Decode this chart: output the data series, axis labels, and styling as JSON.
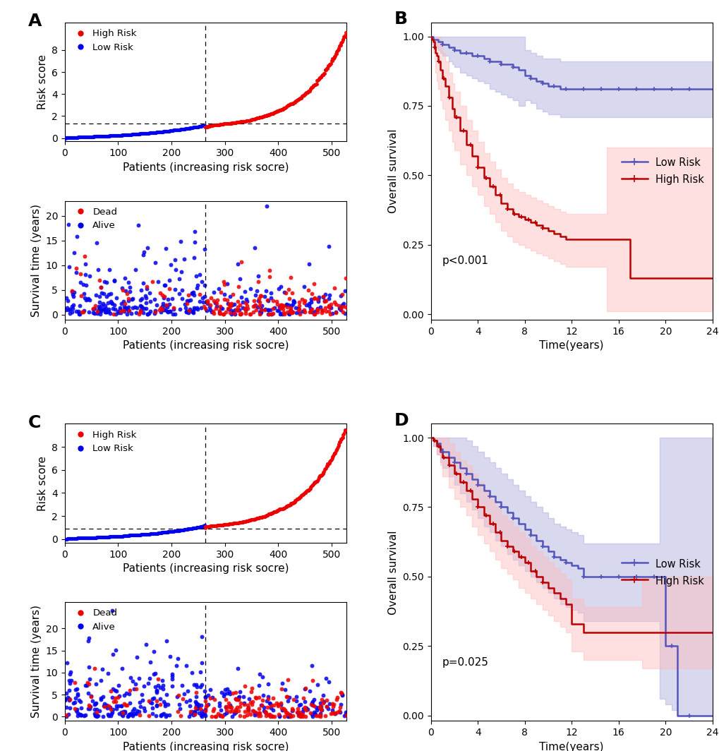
{
  "panel_label_fontsize": 18,
  "panel_label_fontweight": "bold",
  "risk_score_A": {
    "n_total": 528,
    "n_low": 263,
    "cutoff_x": 263,
    "y_hline": 1.3,
    "low_color": "#0000EE",
    "high_color": "#EE0000",
    "xlabel": "Patients (increasing risk socre)",
    "ylabel": "Risk score",
    "xlim": [
      0,
      528
    ],
    "ylim": [
      -0.3,
      10.5
    ],
    "yticks": [
      0,
      2,
      4,
      6,
      8
    ],
    "xticks": [
      0,
      100,
      200,
      300,
      400,
      500
    ]
  },
  "survival_dot_A": {
    "n_total": 528,
    "n_low": 263,
    "cutoff_x": 263,
    "dead_color": "#EE0000",
    "alive_color": "#0000EE",
    "xlabel": "Patients (increasing risk socre)",
    "ylabel": "Survival time (years)",
    "xlim": [
      0,
      528
    ],
    "ylim": [
      -1,
      23
    ],
    "yticks": [
      0,
      5,
      10,
      15,
      20
    ],
    "xticks": [
      0,
      100,
      200,
      300,
      400,
      500
    ]
  },
  "km_B": {
    "low_risk_color": "#5555BB",
    "high_risk_color": "#BB0000",
    "low_risk_fill": "#AAAADD",
    "high_risk_fill": "#FFBBBB",
    "xlabel": "Time(years)",
    "ylabel": "Overall survival",
    "xlim": [
      0,
      24
    ],
    "ylim": [
      -0.02,
      1.05
    ],
    "xticks": [
      0,
      4,
      8,
      12,
      16,
      20,
      24
    ],
    "yticks": [
      0.0,
      0.25,
      0.5,
      0.75,
      1.0
    ],
    "pvalue": "p<0.001",
    "low_km_x": [
      0,
      0.2,
      0.4,
      0.6,
      0.8,
      1.0,
      1.2,
      1.5,
      1.8,
      2.0,
      2.5,
      3.0,
      3.5,
      4.0,
      4.5,
      5.0,
      5.5,
      6.0,
      6.5,
      7.0,
      7.5,
      8.0,
      8.5,
      9.0,
      9.5,
      10.0,
      11.0,
      12.0,
      13.0,
      14.0,
      15.0,
      16.0,
      17.0,
      18.0,
      19.0,
      20.0,
      21.0,
      22.0,
      24.0
    ],
    "low_km_y": [
      1.0,
      0.99,
      0.99,
      0.98,
      0.98,
      0.97,
      0.97,
      0.96,
      0.96,
      0.95,
      0.94,
      0.94,
      0.93,
      0.93,
      0.92,
      0.91,
      0.91,
      0.9,
      0.9,
      0.89,
      0.88,
      0.86,
      0.85,
      0.84,
      0.83,
      0.82,
      0.81,
      0.81,
      0.81,
      0.81,
      0.81,
      0.81,
      0.81,
      0.81,
      0.81,
      0.81,
      0.81,
      0.81,
      0.81
    ],
    "low_ci_upper": [
      1.0,
      1.0,
      1.0,
      1.0,
      1.0,
      1.0,
      1.0,
      1.0,
      1.0,
      1.0,
      1.0,
      1.0,
      1.0,
      1.0,
      1.0,
      1.0,
      1.0,
      1.0,
      1.0,
      1.0,
      1.0,
      0.95,
      0.94,
      0.93,
      0.92,
      0.92,
      0.91,
      0.91,
      0.91,
      0.91,
      0.91,
      0.91,
      0.91,
      0.91,
      0.91,
      0.91,
      0.91,
      0.91,
      0.91
    ],
    "low_ci_lower": [
      1.0,
      0.97,
      0.96,
      0.95,
      0.94,
      0.93,
      0.93,
      0.91,
      0.9,
      0.89,
      0.87,
      0.86,
      0.85,
      0.84,
      0.83,
      0.81,
      0.8,
      0.79,
      0.78,
      0.77,
      0.75,
      0.77,
      0.76,
      0.74,
      0.73,
      0.72,
      0.71,
      0.71,
      0.71,
      0.71,
      0.71,
      0.71,
      0.71,
      0.71,
      0.71,
      0.71,
      0.71,
      0.71,
      0.71
    ],
    "high_km_x": [
      0,
      0.1,
      0.2,
      0.3,
      0.4,
      0.5,
      0.6,
      0.8,
      1.0,
      1.2,
      1.5,
      1.8,
      2.0,
      2.5,
      3.0,
      3.5,
      4.0,
      4.5,
      5.0,
      5.5,
      6.0,
      6.5,
      7.0,
      7.5,
      8.0,
      8.5,
      9.0,
      9.5,
      10.0,
      10.5,
      11.0,
      11.5,
      12.0,
      13.0,
      14.0,
      15.0,
      16.0,
      17.0,
      18.0,
      19.0,
      19.5,
      20.0,
      24.0
    ],
    "high_km_y": [
      1.0,
      0.99,
      0.98,
      0.96,
      0.94,
      0.93,
      0.91,
      0.88,
      0.85,
      0.82,
      0.78,
      0.74,
      0.71,
      0.66,
      0.61,
      0.57,
      0.53,
      0.49,
      0.46,
      0.43,
      0.4,
      0.38,
      0.36,
      0.35,
      0.34,
      0.33,
      0.32,
      0.31,
      0.3,
      0.29,
      0.28,
      0.27,
      0.27,
      0.27,
      0.27,
      0.27,
      0.27,
      0.13,
      0.13,
      0.13,
      0.13,
      0.13,
      0.13
    ],
    "high_ci_upper": [
      1.0,
      1.0,
      1.0,
      1.0,
      1.0,
      1.0,
      1.0,
      0.97,
      0.94,
      0.91,
      0.87,
      0.83,
      0.8,
      0.75,
      0.7,
      0.66,
      0.62,
      0.58,
      0.55,
      0.52,
      0.49,
      0.47,
      0.45,
      0.44,
      0.43,
      0.42,
      0.41,
      0.4,
      0.39,
      0.38,
      0.37,
      0.36,
      0.36,
      0.36,
      0.36,
      0.6,
      0.6,
      0.6,
      0.6,
      0.6,
      0.6,
      0.6,
      0.6
    ],
    "high_ci_lower": [
      1.0,
      0.97,
      0.94,
      0.91,
      0.87,
      0.84,
      0.81,
      0.77,
      0.74,
      0.7,
      0.66,
      0.62,
      0.59,
      0.54,
      0.5,
      0.46,
      0.43,
      0.39,
      0.36,
      0.33,
      0.3,
      0.28,
      0.26,
      0.25,
      0.24,
      0.23,
      0.22,
      0.21,
      0.2,
      0.19,
      0.18,
      0.17,
      0.17,
      0.17,
      0.17,
      0.01,
      0.01,
      0.01,
      0.01,
      0.01,
      0.01,
      0.01,
      0.01
    ]
  },
  "risk_score_C": {
    "n_total": 528,
    "n_low": 263,
    "cutoff_x": 263,
    "y_hline": 0.9,
    "low_color": "#0000EE",
    "high_color": "#EE0000",
    "xlabel": "Patients (increasing risk socre)",
    "ylabel": "Risk score",
    "xlim": [
      0,
      528
    ],
    "ylim": [
      -0.3,
      10.0
    ],
    "yticks": [
      0,
      2,
      4,
      6,
      8
    ],
    "xticks": [
      0,
      100,
      200,
      300,
      400,
      500
    ]
  },
  "survival_dot_C": {
    "n_total": 528,
    "n_low": 263,
    "cutoff_x": 263,
    "dead_color": "#EE0000",
    "alive_color": "#0000EE",
    "xlabel": "Patients (increasing risk socre)",
    "ylabel": "Survival time (years)",
    "xlim": [
      0,
      528
    ],
    "ylim": [
      -1,
      26
    ],
    "yticks": [
      0,
      5,
      10,
      15,
      20
    ],
    "xticks": [
      0,
      100,
      200,
      300,
      400,
      500
    ]
  },
  "km_D": {
    "low_risk_color": "#5555BB",
    "high_risk_color": "#BB0000",
    "low_risk_fill": "#AAAADD",
    "high_risk_fill": "#FFBBBB",
    "xlabel": "Time(years)",
    "ylabel": "Overall survival",
    "xlim": [
      0,
      24
    ],
    "ylim": [
      -0.02,
      1.05
    ],
    "xticks": [
      0,
      4,
      8,
      12,
      16,
      20,
      24
    ],
    "yticks": [
      0.0,
      0.25,
      0.5,
      0.75,
      1.0
    ],
    "pvalue": "p=0.025",
    "low_km_x": [
      0,
      0.2,
      0.5,
      0.8,
      1.0,
      1.5,
      2.0,
      2.5,
      3.0,
      3.5,
      4.0,
      4.5,
      5.0,
      5.5,
      6.0,
      6.5,
      7.0,
      7.5,
      8.0,
      8.5,
      9.0,
      9.5,
      10.0,
      10.5,
      11.0,
      11.5,
      12.0,
      12.5,
      13.0,
      14.0,
      15.0,
      16.0,
      17.0,
      18.0,
      19.0,
      19.5,
      20.0,
      20.5,
      21.0,
      24.0
    ],
    "low_km_y": [
      1.0,
      0.99,
      0.98,
      0.96,
      0.95,
      0.93,
      0.91,
      0.89,
      0.87,
      0.85,
      0.83,
      0.81,
      0.79,
      0.77,
      0.75,
      0.73,
      0.71,
      0.69,
      0.67,
      0.65,
      0.63,
      0.61,
      0.59,
      0.57,
      0.56,
      0.55,
      0.54,
      0.53,
      0.5,
      0.5,
      0.5,
      0.5,
      0.5,
      0.5,
      0.5,
      0.5,
      0.25,
      0.25,
      0.0,
      0.0
    ],
    "low_ci_upper": [
      1.0,
      1.0,
      1.0,
      1.0,
      1.0,
      1.0,
      1.0,
      1.0,
      0.99,
      0.97,
      0.95,
      0.93,
      0.91,
      0.89,
      0.87,
      0.85,
      0.83,
      0.81,
      0.79,
      0.77,
      0.75,
      0.73,
      0.71,
      0.69,
      0.68,
      0.67,
      0.66,
      0.65,
      0.62,
      0.62,
      0.62,
      0.62,
      0.62,
      0.62,
      0.62,
      1.0,
      1.0,
      1.0,
      1.0,
      1.0
    ],
    "low_ci_lower": [
      1.0,
      0.97,
      0.94,
      0.91,
      0.89,
      0.86,
      0.83,
      0.8,
      0.77,
      0.74,
      0.71,
      0.68,
      0.66,
      0.63,
      0.61,
      0.58,
      0.56,
      0.54,
      0.52,
      0.5,
      0.48,
      0.46,
      0.44,
      0.42,
      0.4,
      0.39,
      0.38,
      0.37,
      0.34,
      0.34,
      0.34,
      0.34,
      0.34,
      0.34,
      0.34,
      0.06,
      0.04,
      0.02,
      0.0,
      0.0
    ],
    "high_km_x": [
      0,
      0.2,
      0.5,
      0.8,
      1.0,
      1.5,
      2.0,
      2.5,
      3.0,
      3.5,
      4.0,
      4.5,
      5.0,
      5.5,
      6.0,
      6.5,
      7.0,
      7.5,
      8.0,
      8.5,
      9.0,
      9.5,
      10.0,
      10.5,
      11.0,
      11.5,
      12.0,
      13.0,
      14.0,
      15.0,
      16.0,
      17.0,
      18.0,
      19.0,
      20.0,
      21.0,
      22.0,
      23.0,
      24.0
    ],
    "high_km_y": [
      1.0,
      0.99,
      0.97,
      0.95,
      0.93,
      0.9,
      0.87,
      0.84,
      0.81,
      0.78,
      0.75,
      0.72,
      0.69,
      0.66,
      0.63,
      0.61,
      0.59,
      0.57,
      0.55,
      0.52,
      0.5,
      0.48,
      0.46,
      0.44,
      0.42,
      0.4,
      0.33,
      0.3,
      0.3,
      0.3,
      0.3,
      0.3,
      0.3,
      0.3,
      0.3,
      0.3,
      0.3,
      0.3,
      0.3
    ],
    "high_ci_upper": [
      1.0,
      1.0,
      1.0,
      1.0,
      1.0,
      0.98,
      0.95,
      0.92,
      0.9,
      0.87,
      0.84,
      0.81,
      0.78,
      0.75,
      0.72,
      0.7,
      0.68,
      0.66,
      0.64,
      0.61,
      0.59,
      0.57,
      0.55,
      0.53,
      0.51,
      0.49,
      0.42,
      0.39,
      0.39,
      0.39,
      0.39,
      0.39,
      0.5,
      0.5,
      0.5,
      0.5,
      0.5,
      0.5,
      0.5
    ],
    "high_ci_lower": [
      1.0,
      0.97,
      0.94,
      0.9,
      0.86,
      0.82,
      0.78,
      0.75,
      0.72,
      0.68,
      0.65,
      0.62,
      0.59,
      0.56,
      0.53,
      0.51,
      0.49,
      0.46,
      0.44,
      0.42,
      0.4,
      0.38,
      0.36,
      0.34,
      0.32,
      0.3,
      0.23,
      0.2,
      0.2,
      0.2,
      0.2,
      0.2,
      0.17,
      0.17,
      0.17,
      0.17,
      0.17,
      0.17,
      0.17
    ]
  },
  "dot_size": 14,
  "dot_alpha": 0.85,
  "tick_fontsize": 10,
  "label_fontsize": 11
}
